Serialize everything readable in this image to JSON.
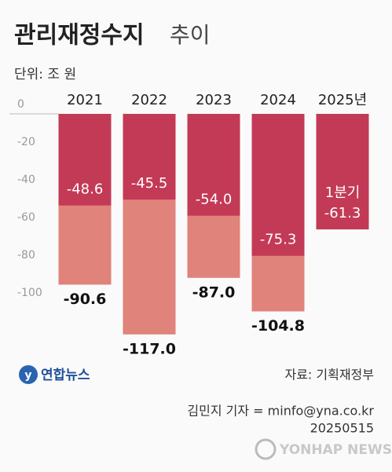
{
  "chart_data": {
    "type": "bar",
    "title": "관리재정수지",
    "title_suffix": "추이",
    "unit": "단위: 조 원",
    "categories": [
      "2021",
      "2022",
      "2023",
      "2024",
      "2025년"
    ],
    "series": [
      {
        "color": "#e0837b",
        "values": [
          -90.6,
          -117.0,
          -87.0,
          -104.8,
          null
        ],
        "value_labels": [
          "-90.6",
          "-117.0",
          "-87.0",
          "-104.8",
          null
        ]
      },
      {
        "color": "#c33a56",
        "values": [
          -48.6,
          -45.5,
          -54.0,
          -75.3,
          -61.3
        ],
        "value_labels": [
          "-48.6",
          "-45.5",
          "-54.0",
          "-75.3",
          "-61.3"
        ]
      }
    ],
    "annotation": "1분기",
    "ylim": [
      -120,
      0
    ],
    "yticks": [
      0,
      -20,
      -40,
      -60,
      -80,
      -100
    ]
  },
  "footer": {
    "logo": "연합뉴스",
    "source": "자료: 기획재정부",
    "credit": "김민지 기자 = minfo@yna.co.kr",
    "date": "20250515",
    "watermark": "YONHAP NEWS"
  }
}
